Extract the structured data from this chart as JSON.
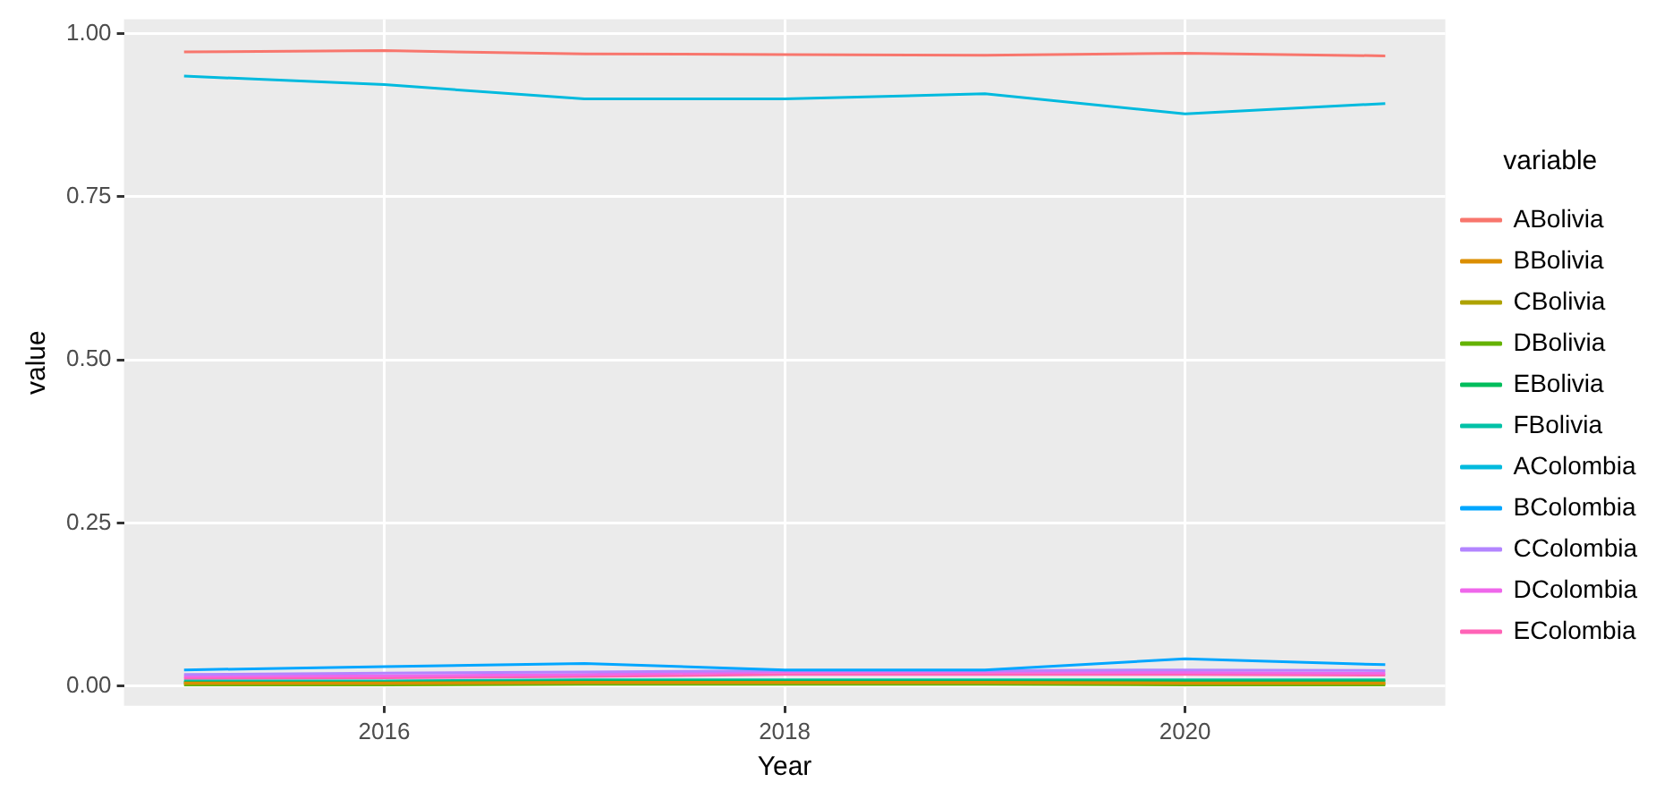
{
  "chart_data": {
    "type": "line",
    "xlabel": "Year",
    "ylabel": "value",
    "legend_title": "variable",
    "legend": "right",
    "grid": true,
    "marker": "none",
    "line_style": "solid",
    "x": [
      2015,
      2016,
      2017,
      2018,
      2019,
      2020,
      2021
    ],
    "xlim": [
      2014.7,
      2021.3
    ],
    "xticks": [
      2016,
      2018,
      2020
    ],
    "ylim": [
      -0.03,
      1.022
    ],
    "yticks": [
      {
        "value": 0,
        "label": "0.00"
      },
      {
        "value": 0.25,
        "label": "0.25"
      },
      {
        "value": 0.5,
        "label": "0.50"
      },
      {
        "value": 0.75,
        "label": "0.75"
      },
      {
        "value": 1,
        "label": "1.00"
      }
    ],
    "series": [
      {
        "name": "ABolivia",
        "color": "#f8766d",
        "values": [
          0.972,
          0.974,
          0.969,
          0.968,
          0.967,
          0.97,
          0.966
        ]
      },
      {
        "name": "BBolivia",
        "color": "#db8e00",
        "values": [
          0.005,
          0.005,
          0.006,
          0.006,
          0.006,
          0.005,
          0.005
        ]
      },
      {
        "name": "CBolivia",
        "color": "#aea200",
        "values": [
          0.004,
          0.004,
          0.005,
          0.005,
          0.005,
          0.004,
          0.004
        ]
      },
      {
        "name": "DBolivia",
        "color": "#64b200",
        "values": [
          0.002,
          0.002,
          0.003,
          0.003,
          0.003,
          0.002,
          0.002
        ]
      },
      {
        "name": "EBolivia",
        "color": "#00bd5c",
        "values": [
          0.006,
          0.006,
          0.008,
          0.008,
          0.008,
          0.008,
          0.008
        ]
      },
      {
        "name": "FBolivia",
        "color": "#00c1a7",
        "values": [
          0.008,
          0.008,
          0.01,
          0.01,
          0.01,
          0.01,
          0.01
        ]
      },
      {
        "name": "AColombia",
        "color": "#00bade",
        "values": [
          0.935,
          0.922,
          0.9,
          0.9,
          0.908,
          0.877,
          0.893
        ]
      },
      {
        "name": "BColombia",
        "color": "#00a6ff",
        "values": [
          0.025,
          0.03,
          0.035,
          0.025,
          0.025,
          0.042,
          0.033
        ]
      },
      {
        "name": "CColombia",
        "color": "#b385ff",
        "values": [
          0.018,
          0.02,
          0.022,
          0.024,
          0.024,
          0.025,
          0.024
        ]
      },
      {
        "name": "DColombia",
        "color": "#ef67eb",
        "values": [
          0.015,
          0.016,
          0.018,
          0.022,
          0.022,
          0.021,
          0.02
        ]
      },
      {
        "name": "EColombia",
        "color": "#ff63b6",
        "values": [
          0.012,
          0.013,
          0.015,
          0.018,
          0.018,
          0.018,
          0.017
        ]
      }
    ]
  }
}
